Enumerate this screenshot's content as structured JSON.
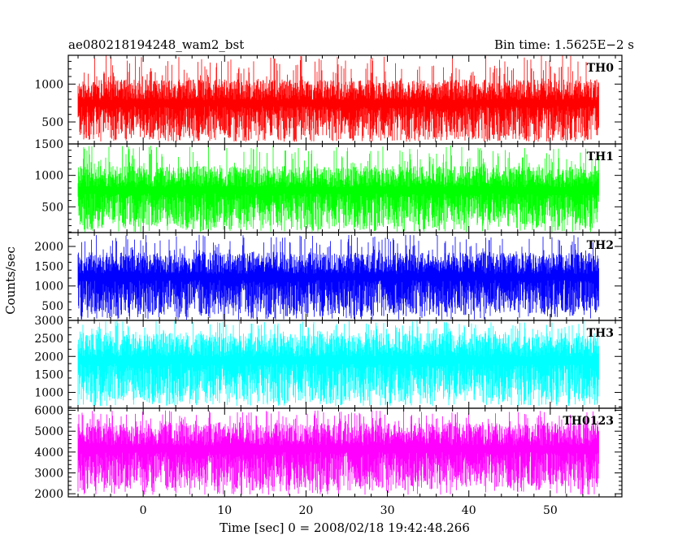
{
  "header": {
    "title": "ae080218194248_wam2_bst",
    "bin_time": "Bin time: 1.5625E−2 s"
  },
  "chart_data": {
    "type": "line",
    "title": "ae080218194248_wam2_bst",
    "subtitle": "Bin time: 1.5625E−2 s",
    "xlabel": "Time [sec] 0 = 2008/02/18 19:42:48.266",
    "ylabel": "Counts/sec",
    "xlim": [
      -9.2,
      58.8
    ],
    "x_data_range": [
      -8,
      56
    ],
    "x_ticks": [
      0,
      10,
      20,
      30,
      40,
      50
    ],
    "x_tick_labels": [
      "0",
      "10",
      "20",
      "30",
      "40",
      "50"
    ],
    "grid": false,
    "panels": [
      {
        "name": "TH0",
        "color": "#ff0000",
        "ylim": [
          210,
          1380
        ],
        "yticks": [
          500,
          1000
        ],
        "ytick_labels": [
          "500",
          "1000"
        ],
        "ytop_label": "",
        "band": {
          "low": 280,
          "high": 1060,
          "spike_max": 1380,
          "dip_min": 240
        }
      },
      {
        "name": "TH1",
        "color": "#00ff00",
        "ylim": [
          90,
          1500
        ],
        "yticks": [
          500,
          1000,
          1500
        ],
        "ytick_labels": [
          "500",
          "1000",
          "1500"
        ],
        "ytop_label": "1500",
        "band": {
          "low": 180,
          "high": 1150,
          "spike_max": 1480,
          "dip_min": 100
        }
      },
      {
        "name": "TH2",
        "color": "#0000ff",
        "ylim": [
          130,
          2350
        ],
        "yticks": [
          500,
          1000,
          1500,
          2000
        ],
        "ytick_labels": [
          "500",
          "1000",
          "1500",
          "2000"
        ],
        "ytop_label": "",
        "band": {
          "low": 300,
          "high": 1850,
          "spike_max": 2300,
          "dip_min": 150
        }
      },
      {
        "name": "TH3",
        "color": "#00ffff",
        "ylim": [
          560,
          3000
        ],
        "yticks": [
          1000,
          1500,
          2000,
          2500,
          3000
        ],
        "ytick_labels": [
          "1000",
          "1500",
          "2000",
          "2500",
          "3000"
        ],
        "ytop_label": "3000",
        "band": {
          "low": 760,
          "high": 2650,
          "spike_max": 3000,
          "dip_min": 620
        }
      },
      {
        "name": "TH0123",
        "color": "#ff00ff",
        "ylim": [
          1850,
          6100
        ],
        "yticks": [
          2000,
          3000,
          4000,
          5000,
          6000
        ],
        "ytick_labels": [
          "2000",
          "3000",
          "4000",
          "5000",
          "6000"
        ],
        "ytop_label": "6000",
        "band": {
          "low": 2300,
          "high": 5400,
          "spike_max": 6000,
          "dip_min": 1950
        }
      }
    ]
  }
}
